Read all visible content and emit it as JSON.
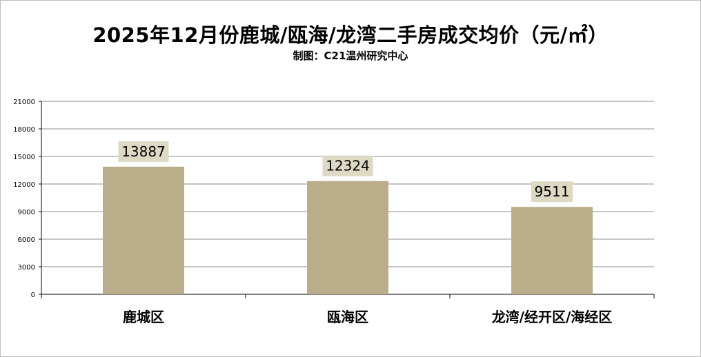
{
  "chart_data": {
    "type": "bar",
    "title": "2025年12月份鹿城/瓯海/龙湾二手房成交均价（元/㎡）",
    "subtitle": "制图：C21温州研究中心",
    "categories": [
      "鹿城区",
      "瓯海区",
      "龙湾/经开区/海经区"
    ],
    "values": [
      13887,
      12324,
      9511
    ],
    "data_labels": [
      "13887",
      "12324",
      "9511"
    ],
    "y_ticks": [
      "0",
      "3000",
      "6000",
      "9000",
      "12000",
      "15000",
      "18000",
      "21000"
    ],
    "ylim": [
      0,
      21000
    ],
    "grid": true,
    "legend": "none",
    "colors": {
      "bar": "#baad89",
      "label_bg": "#ddd9c3",
      "grid": "#8c8c8c"
    }
  }
}
